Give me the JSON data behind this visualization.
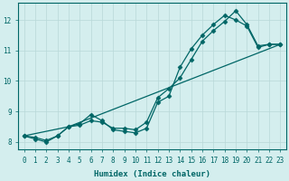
{
  "xlabel": "Humidex (Indice chaleur)",
  "bg_color": "#d4eeee",
  "line_color": "#006666",
  "grid_color": "#b8d8d8",
  "xlim": [
    -0.5,
    23.5
  ],
  "ylim": [
    7.75,
    12.55
  ],
  "yticks": [
    8,
    9,
    10,
    11,
    12
  ],
  "xticks": [
    0,
    1,
    2,
    3,
    4,
    5,
    6,
    7,
    8,
    9,
    10,
    11,
    12,
    13,
    14,
    15,
    16,
    17,
    18,
    19,
    20,
    21,
    22,
    23
  ],
  "series1_x": [
    0,
    1,
    2,
    3,
    4,
    5,
    6,
    7,
    8,
    9,
    10,
    11,
    12,
    13,
    14,
    15,
    16,
    17,
    18,
    19,
    20,
    21,
    22,
    23
  ],
  "series1_y": [
    8.2,
    8.15,
    8.05,
    8.2,
    8.5,
    8.55,
    8.7,
    8.65,
    8.45,
    8.45,
    8.4,
    8.65,
    9.45,
    9.75,
    10.1,
    10.7,
    11.3,
    11.65,
    11.95,
    12.3,
    11.85,
    11.15,
    11.2,
    11.2
  ],
  "series2_x": [
    0,
    1,
    2,
    3,
    4,
    5,
    6,
    7,
    8,
    9,
    10,
    11,
    12,
    13,
    14,
    15,
    16,
    17,
    18,
    19,
    20,
    21,
    22,
    23
  ],
  "series2_y": [
    8.2,
    8.1,
    8.0,
    8.2,
    8.5,
    8.6,
    8.9,
    8.7,
    8.4,
    8.35,
    8.3,
    8.45,
    9.3,
    9.5,
    10.45,
    11.05,
    11.5,
    11.85,
    12.15,
    12.0,
    11.8,
    11.1,
    11.2,
    11.2
  ],
  "series3_x": [
    0,
    4,
    23
  ],
  "series3_y": [
    8.2,
    8.5,
    11.2
  ]
}
